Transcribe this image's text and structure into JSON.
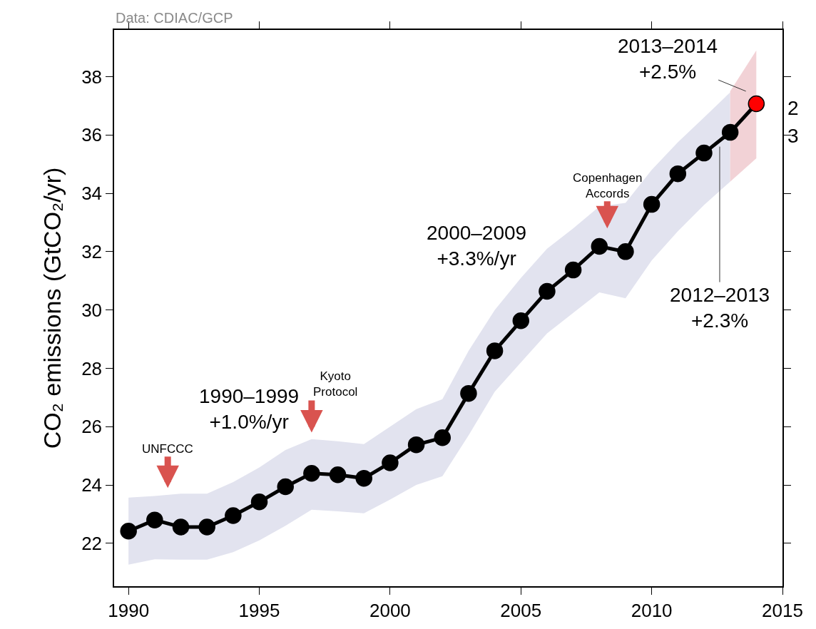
{
  "chart_data": {
    "type": "line",
    "ylabel": "CO₂ emissions (GtCO₂/yr)",
    "x": [
      1990,
      1991,
      1992,
      1993,
      1994,
      1995,
      1996,
      1997,
      1998,
      1999,
      2000,
      2001,
      2002,
      2003,
      2004,
      2005,
      2006,
      2007,
      2008,
      2009,
      2010,
      2011,
      2012,
      2013,
      2014
    ],
    "series": [
      {
        "color": "#e2e3ef",
        "x": [
          1990,
          1991,
          1992,
          1993,
          1994,
          1995,
          1996,
          1997,
          1998,
          1999,
          2000,
          2001,
          2002,
          2003,
          2004,
          2005,
          2006,
          2007,
          2008,
          2009,
          2010,
          2011,
          2012,
          2013
        ],
        "values": [
          null,
          null,
          null,
          null,
          null,
          null,
          null,
          null,
          null,
          null,
          null,
          null,
          null,
          null,
          null,
          null,
          null,
          null,
          null,
          null,
          null,
          null,
          null,
          null
        ],
        "lower": [
          21.27,
          21.45,
          21.44,
          21.44,
          21.7,
          22.1,
          22.6,
          23.15,
          23.1,
          23.03,
          23.5,
          24.0,
          24.3,
          25.7,
          27.2,
          28.2,
          29.2,
          29.9,
          30.6,
          30.4,
          31.7,
          32.7,
          33.6,
          34.4
        ],
        "upper": [
          23.57,
          23.62,
          23.7,
          23.7,
          24.1,
          24.6,
          25.2,
          25.57,
          25.5,
          25.4,
          26.0,
          26.6,
          26.94,
          28.6,
          30.0,
          31.1,
          32.1,
          32.8,
          33.55,
          33.67,
          34.8,
          35.75,
          36.6,
          37.46
        ]
      },
      {
        "color": "#f2d2d6",
        "x": [
          2013,
          2014
        ],
        "values": [
          null,
          null
        ],
        "lower": [
          34.4,
          35.2
        ],
        "upper": [
          37.5,
          38.9
        ]
      },
      {
        "color": "#000000",
        "colors": [
          "#000000",
          "#000000",
          "#000000",
          "#000000",
          "#000000",
          "#000000",
          "#000000",
          "#000000",
          "#000000",
          "#000000",
          "#000000",
          "#000000",
          "#000000",
          "#000000",
          "#000000",
          "#000000",
          "#000000",
          "#000000",
          "#000000",
          "#000000",
          "#000000",
          "#000000",
          "#000000",
          "#000000",
          "#ff0000"
        ],
        "values": [
          22.42,
          22.8,
          22.56,
          22.56,
          22.95,
          23.42,
          23.94,
          24.4,
          24.35,
          24.23,
          24.76,
          25.38,
          25.62,
          27.14,
          28.6,
          29.63,
          30.64,
          31.37,
          32.18,
          32.0,
          33.62,
          34.67,
          35.38,
          36.09,
          37.07
        ]
      }
    ],
    "marker": "circle",
    "line_style": "solid",
    "xlim": [
      1989.45,
      2015
    ],
    "xticks": [
      1990,
      1995,
      2000,
      2005,
      2010,
      2015
    ],
    "ylim": [
      20.53,
      39.6
    ],
    "yticks": [
      22,
      24,
      26,
      28,
      30,
      32,
      34,
      36,
      38
    ],
    "annotations": [
      "Data: CDIAC/GCP",
      "UNFCCC",
      "Kyoto Protocol",
      "Copenhagen Accords",
      "1990–1999 +1.0%/yr",
      "2000–2009 +3.3%/yr",
      "2012–2013 +2.3%",
      "2013–2014 +2.5%",
      "2",
      "3"
    ]
  }
}
